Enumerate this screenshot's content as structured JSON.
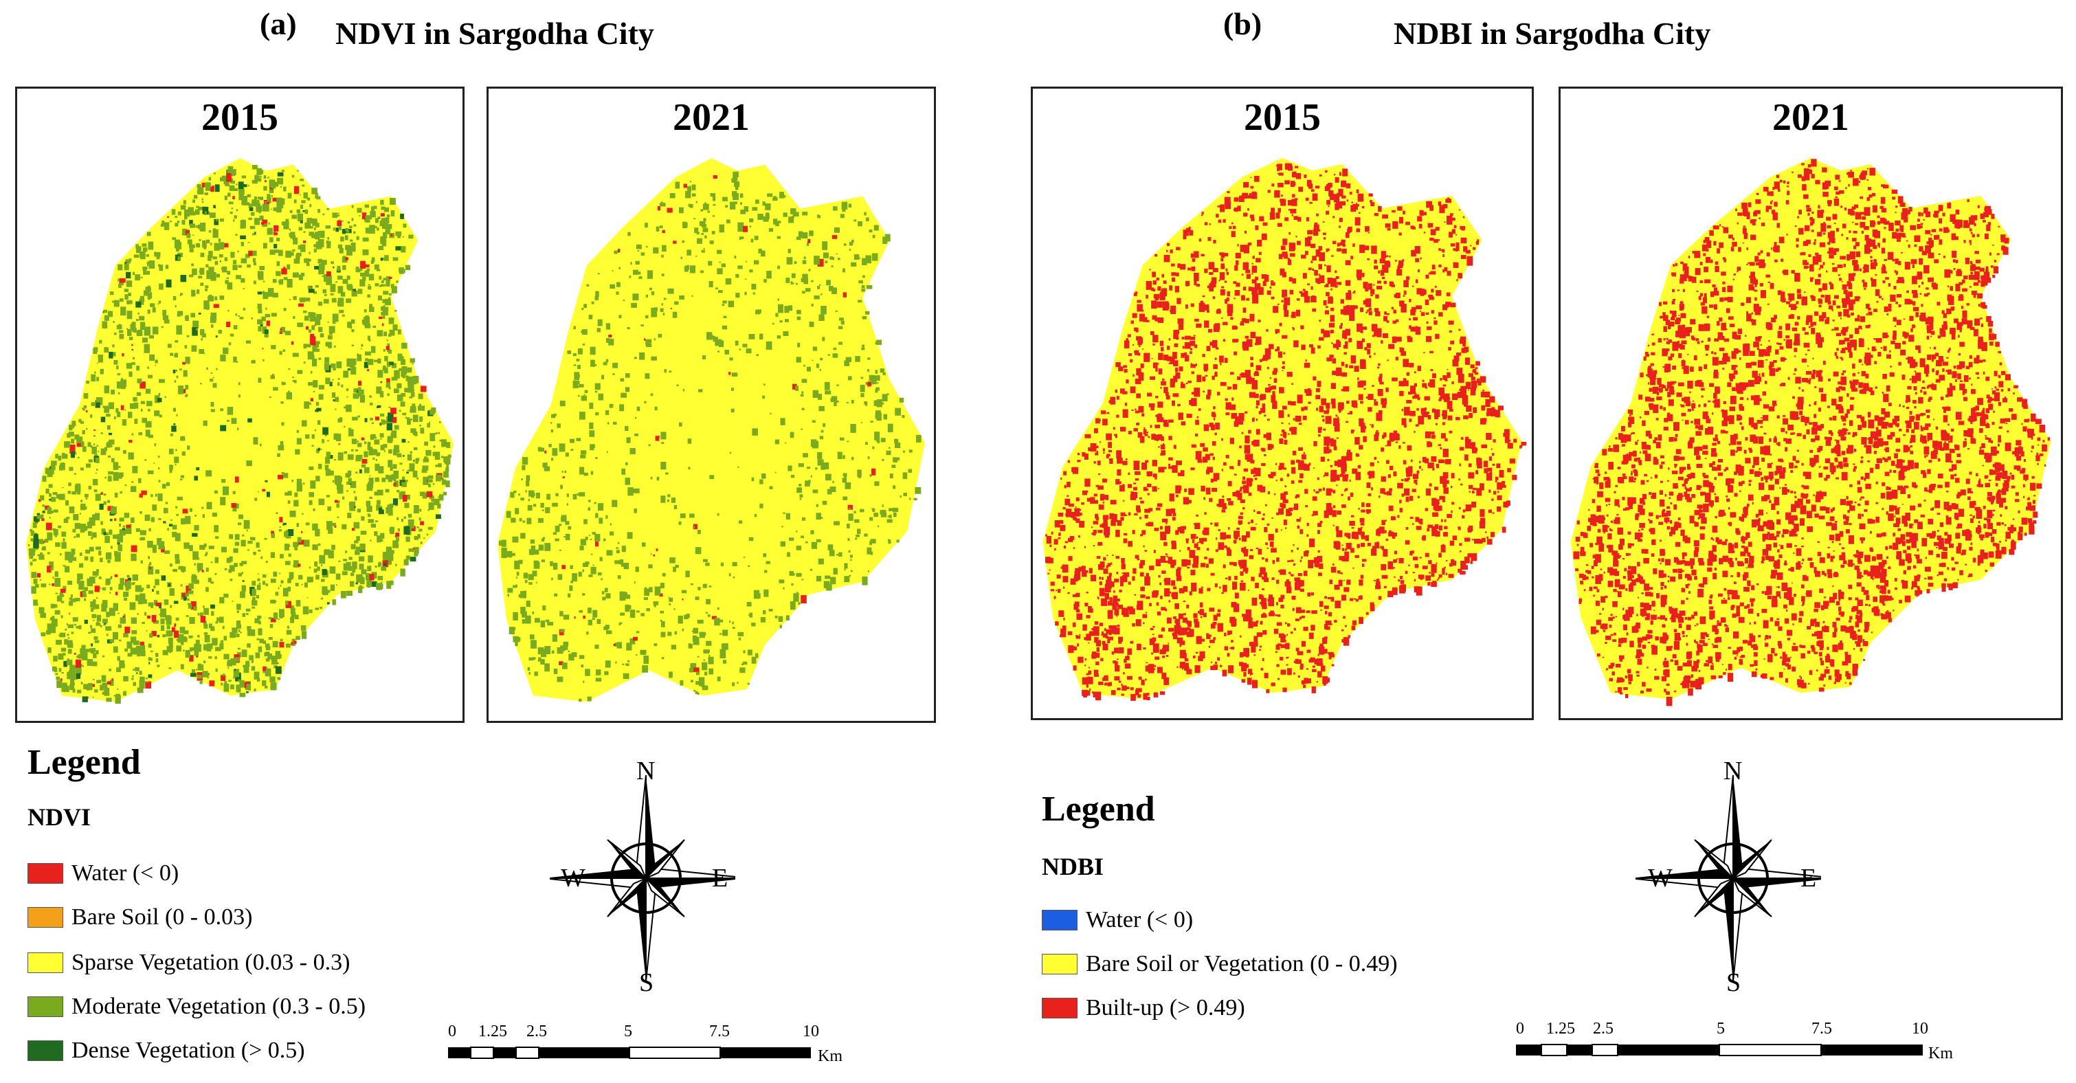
{
  "panels": [
    {
      "letter": "(a)",
      "title": "NDVI in Sargodha City",
      "maps": [
        {
          "year": "2015"
        },
        {
          "year": "2021"
        }
      ],
      "legend": {
        "title": "Legend",
        "index": "NDVI",
        "items": [
          {
            "label": "Water (< 0)",
            "color": "#e8211c"
          },
          {
            "label": "Bare Soil (0 - 0.03)",
            "color": "#f5a01a"
          },
          {
            "label": "Sparse Vegetation (0.03 - 0.3)",
            "color": "#ffff33"
          },
          {
            "label": "Moderate Vegetation (0.3 - 0.5)",
            "color": "#7aab1f"
          },
          {
            "label": "Dense Vegetation (> 0.5)",
            "color": "#1f6b1f"
          }
        ]
      },
      "compass": {
        "n": "N",
        "s": "S",
        "e": "E",
        "w": "W"
      },
      "scale": {
        "ticks": [
          "0",
          "1.25",
          "2.5",
          "5",
          "7.5",
          "10"
        ],
        "unit": "Km"
      }
    },
    {
      "letter": "(b)",
      "title": "NDBI in Sargodha City",
      "maps": [
        {
          "year": "2015"
        },
        {
          "year": "2021"
        }
      ],
      "legend": {
        "title": "Legend",
        "index": "NDBI",
        "items": [
          {
            "label": "Water (< 0)",
            "color": "#1b5fe0"
          },
          {
            "label": "Bare Soil or Vegetation (0 - 0.49)",
            "color": "#ffff33"
          },
          {
            "label": "Built-up (> 0.49)",
            "color": "#e8211c"
          }
        ]
      },
      "compass": {
        "n": "N",
        "s": "S",
        "e": "E",
        "w": "W"
      },
      "scale": {
        "ticks": [
          "0",
          "1.25",
          "2.5",
          "5",
          "7.5",
          "10"
        ],
        "unit": "Km"
      }
    }
  ]
}
